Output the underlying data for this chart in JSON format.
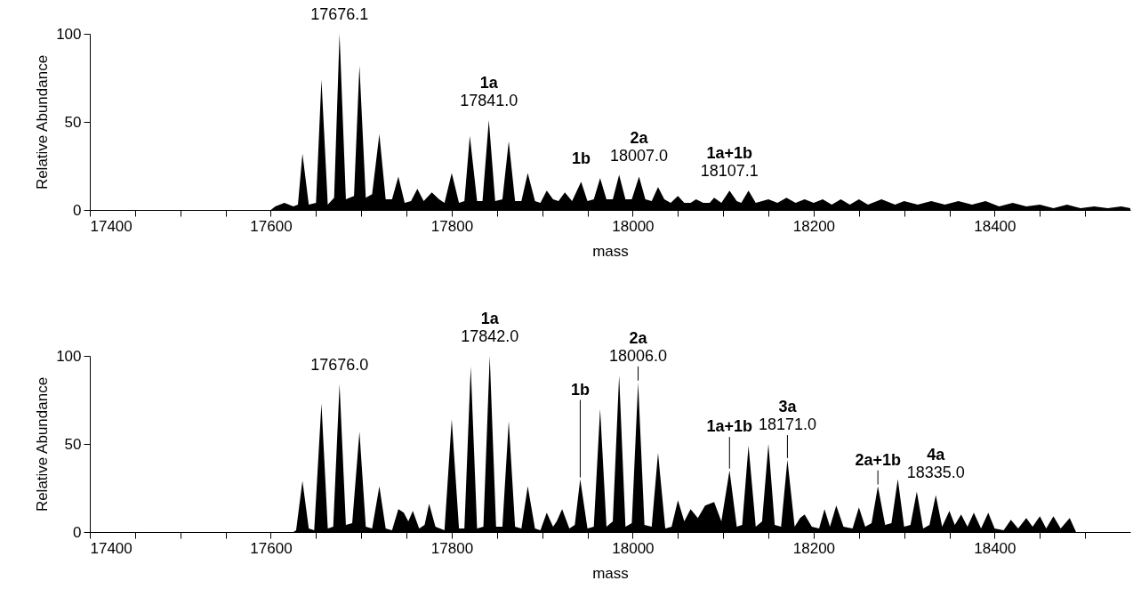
{
  "chart_data": [
    {
      "type": "area",
      "color": "#000000",
      "xlabel": "mass",
      "ylabel": "Relative Abundance",
      "xlim": [
        17400,
        18550
      ],
      "ylim": [
        0,
        100
      ],
      "yticks": [
        0,
        50,
        100
      ],
      "xticks": [
        17400,
        {
          "value": 17450,
          "label": null
        },
        {
          "value": 17500,
          "label": null
        },
        {
          "value": 17550,
          "label": null
        },
        17600,
        {
          "value": 17650,
          "label": null
        },
        {
          "value": 17700,
          "label": null
        },
        {
          "value": 17750,
          "label": null
        },
        17800,
        {
          "value": 17850,
          "label": null
        },
        {
          "value": 17900,
          "label": null
        },
        {
          "value": 17950,
          "label": null
        },
        18000,
        {
          "value": 18050,
          "label": null
        },
        {
          "value": 18100,
          "label": null
        },
        {
          "value": 18150,
          "label": null
        },
        18200,
        {
          "value": 18250,
          "label": null
        },
        {
          "value": 18300,
          "label": null
        },
        {
          "value": 18350,
          "label": null
        },
        18400,
        {
          "value": 18450,
          "label": null
        },
        {
          "value": 18500,
          "label": null
        }
      ],
      "x": [
        17400,
        17600,
        17605,
        17615,
        17625,
        17630,
        17635,
        17642,
        17650,
        17656,
        17663,
        17670,
        17676,
        17683,
        17692,
        17698,
        17705,
        17712,
        17720,
        17727,
        17734,
        17741,
        17748,
        17755,
        17762,
        17769,
        17778,
        17786,
        17792,
        17800,
        17808,
        17814,
        17820,
        17828,
        17834,
        17841,
        17848,
        17856,
        17863,
        17870,
        17877,
        17884,
        17892,
        17898,
        17905,
        17912,
        17918,
        17925,
        17933,
        17943,
        17950,
        17957,
        17964,
        17971,
        17978,
        17985,
        17992,
        17999,
        18007,
        18014,
        18021,
        18028,
        18035,
        18042,
        18050,
        18057,
        18064,
        18070,
        18078,
        18085,
        18090,
        18098,
        18107,
        18115,
        18120,
        18128,
        18136,
        18150,
        18160,
        18170,
        18180,
        18190,
        18200,
        18210,
        18220,
        18230,
        18240,
        18250,
        18260,
        18275,
        18290,
        18300,
        18315,
        18330,
        18345,
        18360,
        18375,
        18390,
        18405,
        18420,
        18435,
        18450,
        18465,
        18480,
        18495,
        18510,
        18525,
        18540,
        18550
      ],
      "values": [
        0,
        0,
        2,
        4,
        2,
        3,
        32,
        3,
        4,
        74,
        3,
        7,
        100,
        6,
        8,
        82,
        7,
        9,
        43,
        6,
        6,
        19,
        4,
        5,
        12,
        5,
        10,
        6,
        4,
        21,
        4,
        5,
        42,
        5,
        5,
        51,
        5,
        6,
        39,
        5,
        5,
        21,
        5,
        4,
        11,
        6,
        5,
        10,
        5,
        16,
        5,
        6,
        18,
        6,
        6,
        20,
        6,
        6,
        19,
        6,
        5,
        13,
        6,
        4,
        8,
        4,
        4,
        6,
        4,
        4,
        7,
        4,
        11,
        5,
        4,
        11,
        4,
        6,
        4,
        7,
        4,
        6,
        4,
        6,
        3,
        6,
        3,
        6,
        3,
        6,
        3,
        5,
        3,
        5,
        3,
        5,
        3,
        5,
        2,
        4,
        2,
        3,
        1,
        3,
        1,
        2,
        1,
        2,
        1
      ],
      "annotations": [
        {
          "text": "17676.1",
          "x": 17676,
          "y": 100
        },
        {
          "text": "1a",
          "x": 17841,
          "y": 51
        },
        {
          "text": "17841.0",
          "x": 17841,
          "y": 51
        },
        {
          "text": "1b",
          "x": 17943,
          "y": 16
        },
        {
          "text": "2a",
          "x": 18007,
          "y": 19
        },
        {
          "text": "18007.0",
          "x": 18007,
          "y": 19
        },
        {
          "text": "1a+1b",
          "x": 18107,
          "y": 11
        },
        {
          "text": "18107.1",
          "x": 18107,
          "y": 11
        }
      ]
    },
    {
      "type": "area",
      "color": "#000000",
      "xlabel": "mass",
      "ylabel": "Relative Abundance",
      "xlim": [
        17400,
        18550
      ],
      "ylim": [
        0,
        100
      ],
      "yticks": [
        0,
        50,
        100
      ],
      "xticks": [
        17400,
        {
          "value": 17450,
          "label": null
        },
        {
          "value": 17500,
          "label": null
        },
        {
          "value": 17550,
          "label": null
        },
        17600,
        {
          "value": 17650,
          "label": null
        },
        {
          "value": 17700,
          "label": null
        },
        {
          "value": 17750,
          "label": null
        },
        17800,
        {
          "value": 17850,
          "label": null
        },
        {
          "value": 17900,
          "label": null
        },
        {
          "value": 17950,
          "label": null
        },
        18000,
        {
          "value": 18050,
          "label": null
        },
        {
          "value": 18100,
          "label": null
        },
        {
          "value": 18150,
          "label": null
        },
        18200,
        {
          "value": 18250,
          "label": null
        },
        {
          "value": 18300,
          "label": null
        },
        {
          "value": 18350,
          "label": null
        },
        18400,
        {
          "value": 18450,
          "label": null
        },
        {
          "value": 18500,
          "label": null
        }
      ],
      "x": [
        17400,
        17625,
        17628,
        17635,
        17642,
        17648,
        17656,
        17663,
        17669,
        17676,
        17683,
        17690,
        17698,
        17705,
        17712,
        17720,
        17727,
        17734,
        17741,
        17747,
        17752,
        17757,
        17764,
        17770,
        17775,
        17782,
        17792,
        17800,
        17808,
        17814,
        17821,
        17828,
        17835,
        17842,
        17849,
        17856,
        17863,
        17870,
        17877,
        17884,
        17892,
        17898,
        17905,
        17912,
        17916,
        17922,
        17930,
        17936,
        17942,
        17950,
        17957,
        17964,
        17971,
        17978,
        17985,
        17992,
        17999,
        18006,
        18013,
        18021,
        18028,
        18036,
        18043,
        18050,
        18057,
        18064,
        18072,
        18080,
        18090,
        18098,
        18107,
        18115,
        18121,
        18128,
        18136,
        18143,
        18150,
        18157,
        18164,
        18171,
        18179,
        18185,
        18190,
        18198,
        18206,
        18212,
        18218,
        18225,
        18233,
        18243,
        18250,
        18257,
        18264,
        18271,
        18279,
        18286,
        18293,
        18300,
        18307,
        18314,
        18321,
        18328,
        18335,
        18342,
        18350,
        18356,
        18363,
        18370,
        18377,
        18385,
        18393,
        18400,
        18410,
        18418,
        18426,
        18435,
        18442,
        18450,
        18457,
        18465,
        18473,
        18483,
        18490,
        18550
      ],
      "values": [
        0,
        0,
        1,
        29,
        2,
        1,
        73,
        2,
        3,
        84,
        4,
        5,
        57,
        3,
        2,
        26,
        2,
        1,
        13,
        11,
        6,
        12,
        2,
        4,
        16,
        3,
        1,
        64,
        2,
        2,
        94,
        2,
        3,
        100,
        3,
        3,
        63,
        3,
        2,
        26,
        2,
        1,
        11,
        3,
        6,
        13,
        2,
        4,
        30,
        2,
        3,
        70,
        3,
        6,
        89,
        3,
        5,
        85,
        4,
        3,
        45,
        2,
        3,
        18,
        6,
        13,
        8,
        15,
        17,
        6,
        35,
        3,
        4,
        49,
        3,
        6,
        50,
        4,
        3,
        41,
        3,
        8,
        10,
        3,
        2,
        13,
        3,
        15,
        3,
        2,
        14,
        3,
        5,
        26,
        4,
        5,
        30,
        3,
        4,
        23,
        2,
        4,
        21,
        3,
        12,
        4,
        10,
        3,
        11,
        2,
        11,
        2,
        1,
        7,
        2,
        8,
        3,
        9,
        2,
        9,
        2,
        8,
        0,
        0
      ],
      "annotations": [
        {
          "text": "17676.0",
          "x": 17676,
          "y": 84
        },
        {
          "text": "1a",
          "x": 17842,
          "y": 100
        },
        {
          "text": "17842.0",
          "x": 17842,
          "y": 100
        },
        {
          "text": "1b",
          "x": 17942,
          "y": 30
        },
        {
          "text": "2a",
          "x": 18006,
          "y": 85
        },
        {
          "text": "18006.0",
          "x": 18006,
          "y": 85
        },
        {
          "text": "1a+1b",
          "x": 18107,
          "y": 35
        },
        {
          "text": "3a",
          "x": 18171,
          "y": 41
        },
        {
          "text": "18171.0",
          "x": 18171,
          "y": 41
        },
        {
          "text": "2a+1b",
          "x": 18271,
          "y": 26
        },
        {
          "text": "4a",
          "x": 18335,
          "y": 21
        },
        {
          "text": "18335.0",
          "x": 18335,
          "y": 21
        }
      ]
    }
  ]
}
